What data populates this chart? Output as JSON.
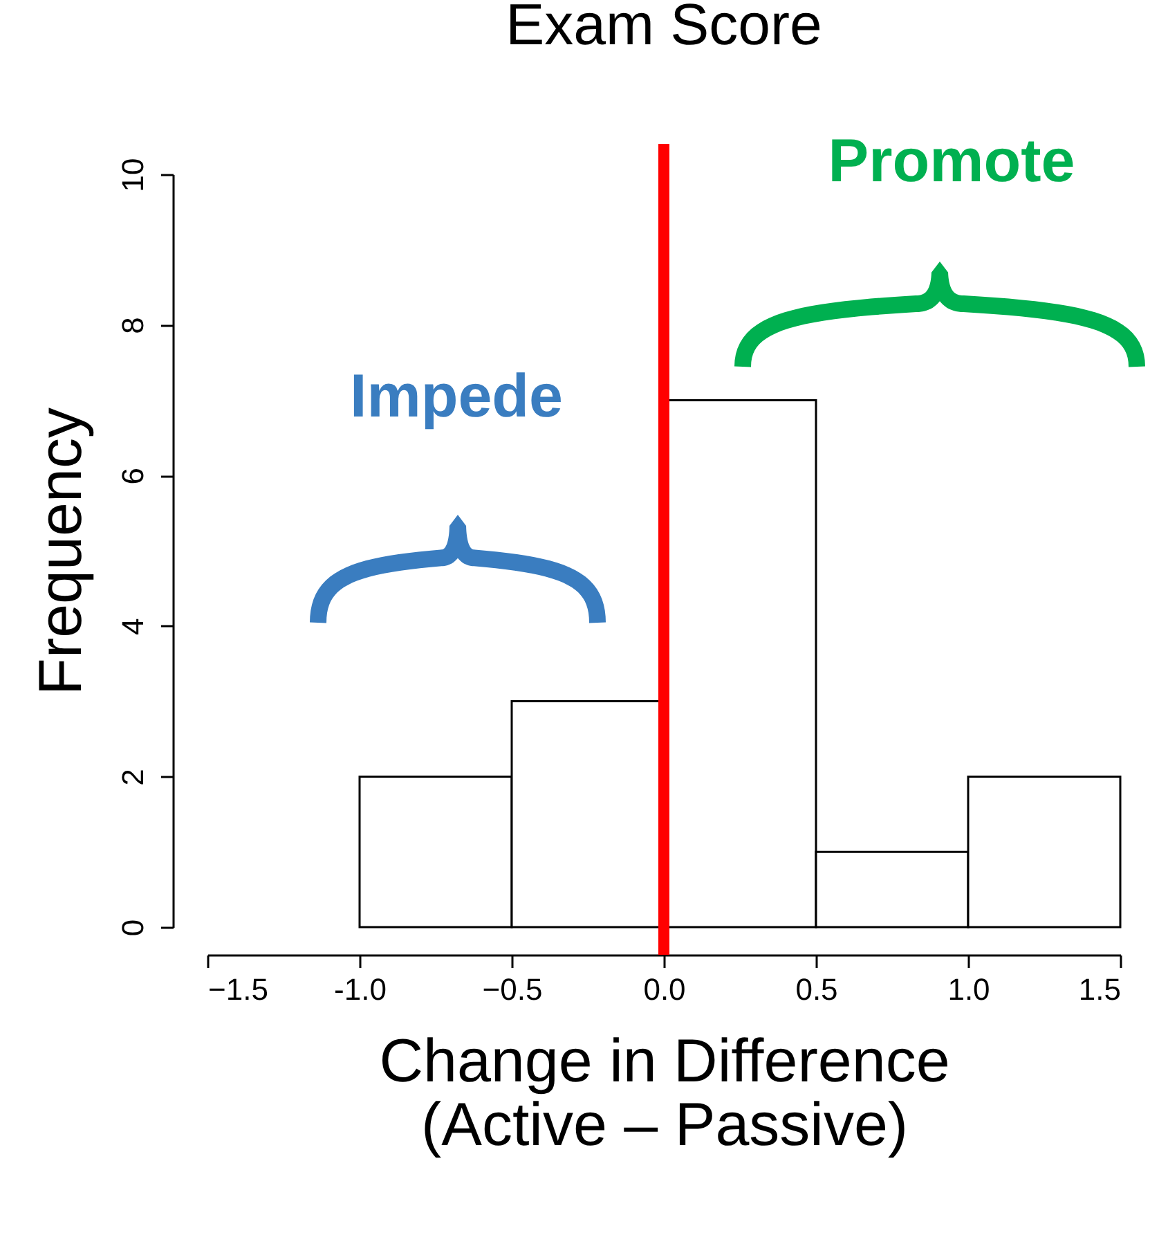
{
  "chart_data": {
    "type": "histogram",
    "title": "Exam Score",
    "xlabel": "Change in Difference\n(Active – Passive)",
    "ylabel": "Frequency",
    "bins": [
      -1.0,
      -0.5,
      0.0,
      0.5,
      1.0,
      1.5
    ],
    "values": [
      2,
      3,
      7,
      1,
      2
    ],
    "color": "#ffffff",
    "xlim": [
      -1.5,
      1.5
    ],
    "xticks": [
      -1.5,
      {
        "value": -1,
        "label": "-1.0"
      },
      -0.5,
      {
        "value": 0,
        "label": "0.0"
      },
      0.5,
      {
        "value": 1,
        "label": "1.0"
      },
      1.5
    ],
    "ylim": [
      0,
      10
    ],
    "yticks": [
      0,
      2,
      4,
      6,
      8,
      10
    ],
    "grid": false,
    "ref_lines": [
      {
        "axis": "x",
        "value": 0,
        "color": "#ff0000"
      }
    ],
    "annotations": [
      "Impede",
      "Promote"
    ]
  }
}
